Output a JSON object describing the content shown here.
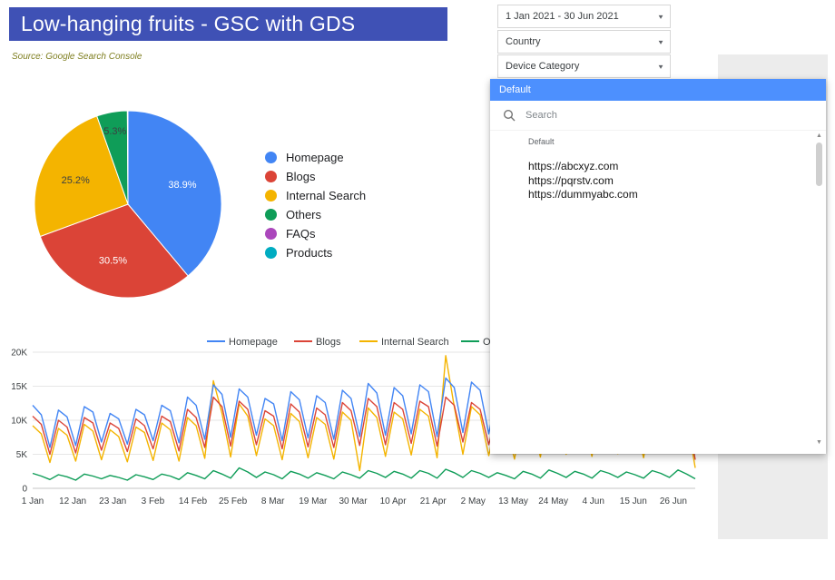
{
  "title": "Low-hanging fruits - GSC with GDS",
  "source_note": "Source: Google Search Console",
  "filters": {
    "date_range": "1 Jan 2021 - 30 Jun 2021",
    "country_label": "Country",
    "device_label": "Device Category"
  },
  "dropdown": {
    "header": "Default",
    "search_placeholder": "Search",
    "group_label": "Default",
    "options": [
      "https://abcxyz.com",
      "https://pqrstv.com",
      "https://dummyabc.com"
    ]
  },
  "colors": {
    "title_bar_bg": "#3f51b5",
    "dropdown_header_bg": "#4d90fe",
    "source_note_text": "#7e7e1f"
  },
  "chart_data": [
    {
      "type": "pie",
      "labels": [
        "Homepage",
        "Blogs",
        "Internal Search",
        "Others",
        "FAQs",
        "Products"
      ],
      "values": [
        38.9,
        30.5,
        25.2,
        5.3,
        0.05,
        0.05
      ],
      "colors": [
        "#4285f4",
        "#db4437",
        "#f4b400",
        "#0f9d58",
        "#ab47bc",
        "#00acc1"
      ],
      "slice_labels": [
        "38.9%",
        "30.5%",
        "25.2%",
        "5.3%",
        "",
        ""
      ],
      "slice_label_colors": [
        "#ffffff",
        "#ffffff",
        "#3c4043",
        "#3c4043",
        "",
        ""
      ],
      "legend_position": "right"
    },
    {
      "type": "line",
      "title": "",
      "xlabel": "",
      "ylabel": "",
      "values_unit": "thousands",
      "ylim": [
        0,
        20
      ],
      "y_tick_values": [
        0,
        5,
        10,
        15,
        20
      ],
      "y_tick_labels": [
        "0",
        "5K",
        "10K",
        "15K",
        "20K"
      ],
      "x_tick_labels": [
        "1 Jan",
        "12 Jan",
        "23 Jan",
        "3 Feb",
        "14 Feb",
        "25 Feb",
        "8 Mar",
        "19 Mar",
        "30 Mar",
        "10 Apr",
        "21 Apr",
        "2 May",
        "13 May",
        "24 May",
        "4 Jun",
        "15 Jun",
        "26 Jun"
      ],
      "x_tick_days": [
        0,
        11,
        22,
        33,
        44,
        55,
        66,
        77,
        88,
        99,
        110,
        121,
        132,
        143,
        154,
        165,
        176
      ],
      "total_days": 182,
      "grid": true,
      "legend_position": "top",
      "series": [
        {
          "name": "Homepage",
          "color": "#4285f4",
          "values": [
            12.2,
            10.8,
            6.0,
            11.5,
            10.5,
            6.3,
            12.0,
            11.2,
            6.8,
            11.0,
            10.2,
            6.5,
            11.6,
            10.8,
            7.0,
            12.2,
            11.4,
            6.7,
            13.4,
            12.2,
            7.2,
            15.2,
            13.8,
            7.5,
            14.6,
            13.4,
            7.8,
            13.2,
            12.4,
            7.0,
            14.2,
            13.0,
            7.4,
            13.6,
            12.6,
            7.2,
            14.4,
            13.2,
            7.6,
            15.4,
            14.0,
            7.8,
            14.8,
            13.6,
            8.0,
            15.2,
            14.2,
            7.6,
            16.2,
            14.8,
            8.2,
            15.6,
            14.4,
            8.0,
            14.2,
            13.0,
            7.4,
            15.2,
            14.0,
            7.8,
            16.2,
            15.0,
            8.4,
            15.8,
            14.6,
            8.0,
            16.4,
            15.2,
            8.6,
            15.2,
            14.0,
            8.0,
            16.6,
            15.4,
            8.8,
            17.0,
            15.6,
            5.2
          ]
        },
        {
          "name": "Blogs",
          "color": "#db4437",
          "values": [
            10.6,
            9.4,
            5.0,
            10.0,
            9.0,
            5.2,
            10.4,
            9.6,
            5.6,
            9.6,
            8.8,
            5.4,
            10.2,
            9.2,
            5.8,
            10.6,
            9.8,
            5.5,
            11.6,
            10.4,
            6.0,
            13.4,
            12.0,
            6.2,
            12.8,
            11.6,
            6.4,
            11.4,
            10.6,
            5.8,
            12.4,
            11.2,
            6.1,
            11.8,
            10.8,
            6.0,
            12.6,
            11.4,
            6.3,
            13.2,
            12.0,
            6.4,
            12.6,
            11.6,
            6.6,
            12.8,
            12.0,
            6.2,
            13.4,
            12.2,
            6.8,
            12.6,
            11.6,
            6.4,
            11.4,
            10.4,
            5.9,
            12.0,
            11.0,
            6.2,
            12.6,
            11.6,
            6.6,
            12.0,
            11.0,
            6.2,
            12.4,
            11.4,
            6.5,
            11.4,
            10.4,
            6.0,
            12.2,
            11.2,
            6.4,
            12.6,
            11.4,
            4.2
          ]
        },
        {
          "name": "Internal Search",
          "color": "#f4b400",
          "values": [
            9.2,
            8.0,
            3.8,
            8.8,
            7.8,
            4.0,
            9.4,
            8.4,
            4.2,
            8.6,
            7.6,
            3.9,
            9.0,
            8.2,
            4.1,
            9.6,
            8.6,
            4.0,
            10.4,
            9.2,
            4.4,
            15.8,
            11.0,
            4.6,
            12.4,
            10.6,
            4.8,
            10.2,
            9.2,
            4.2,
            11.0,
            9.8,
            4.5,
            10.4,
            9.4,
            4.3,
            11.2,
            10.0,
            2.6,
            11.8,
            10.4,
            4.7,
            11.2,
            10.2,
            4.9,
            11.6,
            10.6,
            4.5,
            19.5,
            12.0,
            5.0,
            12.0,
            10.8,
            4.8,
            10.4,
            9.4,
            4.3,
            11.2,
            10.2,
            4.6,
            12.0,
            10.9,
            5.0,
            11.6,
            10.4,
            4.7,
            12.2,
            11.0,
            5.1,
            10.9,
            9.9,
            4.5,
            12.0,
            11.0,
            5.2,
            12.4,
            10.6,
            3.0
          ]
        },
        {
          "name": "Others",
          "color": "#0f9d58",
          "values": [
            2.2,
            1.8,
            1.3,
            2.0,
            1.7,
            1.2,
            2.1,
            1.8,
            1.4,
            1.9,
            1.6,
            1.2,
            2.0,
            1.7,
            1.3,
            2.1,
            1.8,
            1.3,
            2.3,
            1.9,
            1.4,
            2.6,
            2.1,
            1.5,
            3.0,
            2.4,
            1.6,
            2.4,
            2.0,
            1.4,
            2.5,
            2.1,
            1.5,
            2.3,
            1.9,
            1.4,
            2.4,
            2.0,
            1.5,
            2.6,
            2.2,
            1.6,
            2.5,
            2.1,
            1.5,
            2.6,
            2.2,
            1.5,
            2.8,
            2.3,
            1.6,
            2.6,
            2.2,
            1.6,
            2.3,
            1.9,
            1.4,
            2.5,
            2.1,
            1.5,
            2.7,
            2.2,
            1.6,
            2.5,
            2.1,
            1.5,
            2.6,
            2.2,
            1.6,
            2.4,
            2.0,
            1.5,
            2.6,
            2.2,
            1.6,
            2.7,
            2.1,
            1.4
          ]
        }
      ]
    }
  ]
}
